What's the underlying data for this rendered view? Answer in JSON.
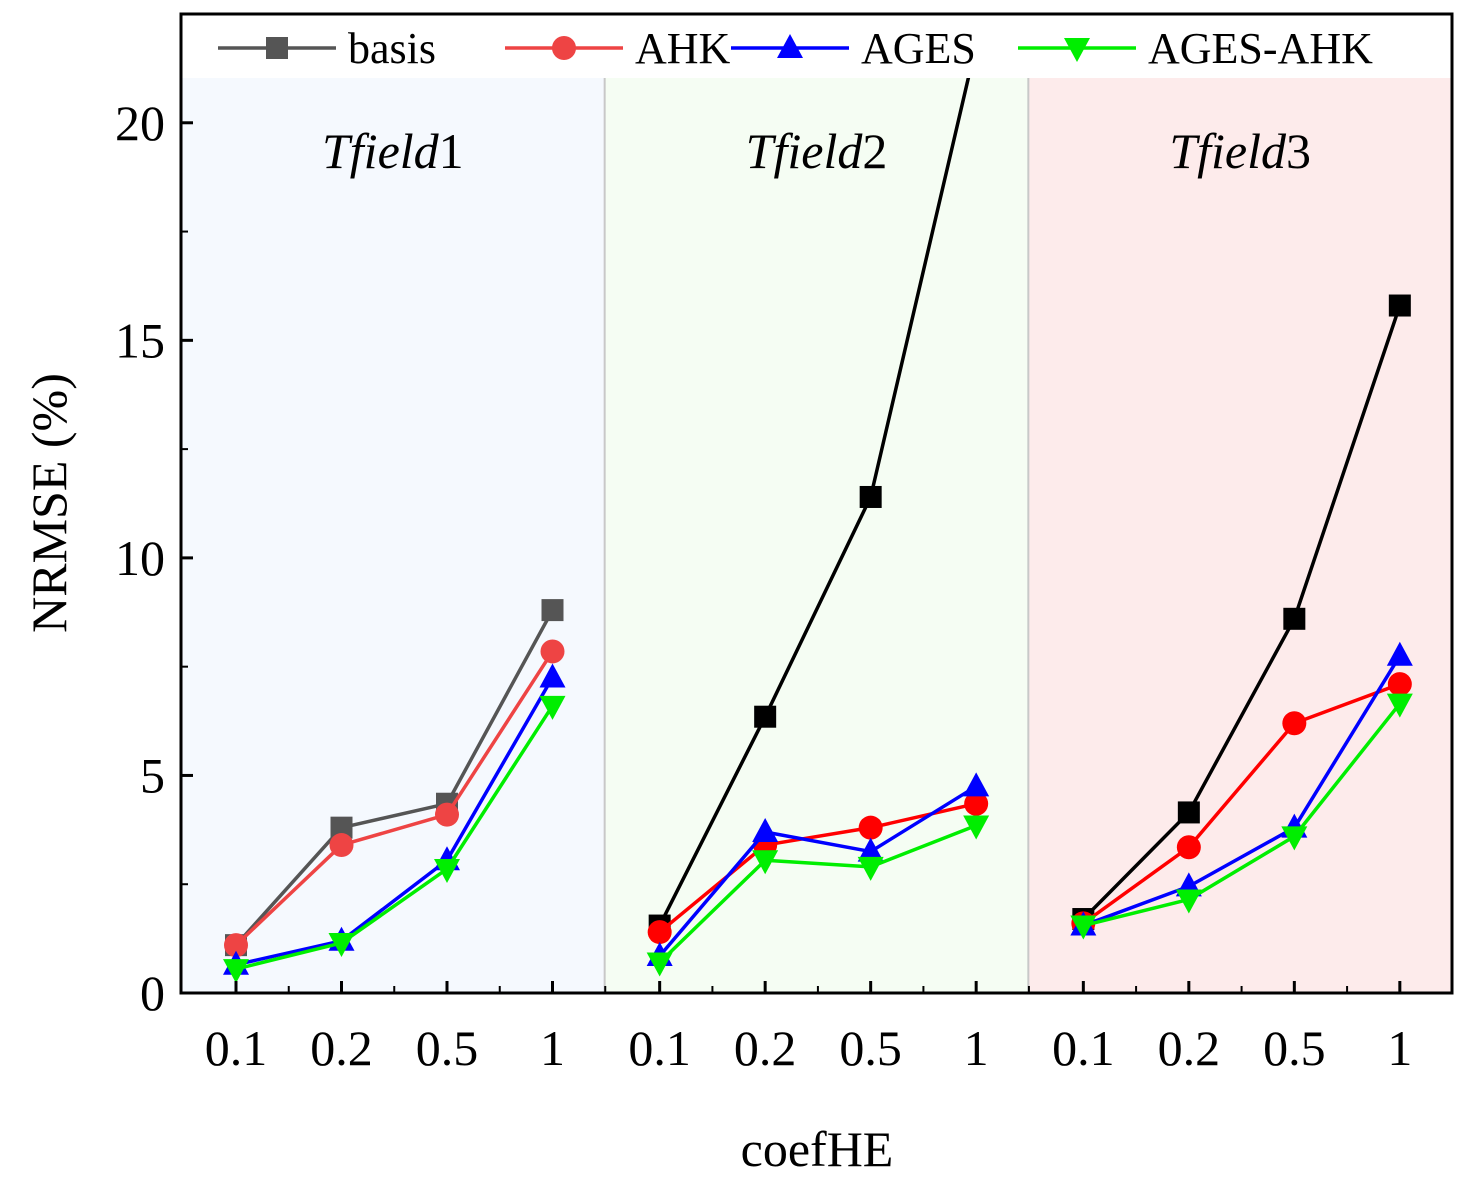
{
  "chart_data": {
    "type": "line",
    "ylabel": "NRMSE (%)",
    "xlabel": "coefHE",
    "ylim": [
      0,
      22.5
    ],
    "yticks": [
      0,
      5,
      10,
      15,
      20
    ],
    "ytick_labels": [
      "0",
      "5",
      "10",
      "15",
      "20"
    ],
    "categories": [
      "0.1",
      "0.2",
      "0.5",
      "1"
    ],
    "legend": [
      {
        "name": "basis",
        "marker": "square"
      },
      {
        "name": "AHK",
        "marker": "circle"
      },
      {
        "name": "AGES",
        "marker": "triangle-up"
      },
      {
        "name": "AGES-AHK",
        "marker": "triangle-down"
      }
    ],
    "panels": [
      {
        "title_italic": "Tfield",
        "title_number": "1",
        "background": "#f5f9fe",
        "series": [
          {
            "name": "basis",
            "color": "#555555",
            "marker": "square",
            "values": [
              1.1,
              3.8,
              4.35,
              8.8
            ]
          },
          {
            "name": "AHK",
            "color": "#ee4444",
            "marker": "circle",
            "values": [
              1.1,
              3.4,
              4.1,
              7.85
            ]
          },
          {
            "name": "AGES",
            "color": "#0000ff",
            "marker": "triangle-up",
            "values": [
              0.65,
              1.2,
              3.05,
              7.25
            ]
          },
          {
            "name": "AGES-AHK",
            "color": "#00ee00",
            "marker": "triangle-down",
            "values": [
              0.55,
              1.15,
              2.85,
              6.6
            ]
          }
        ]
      },
      {
        "title_italic": "Tfield",
        "title_number": "2",
        "background": "#f5fdf3",
        "series": [
          {
            "name": "basis",
            "color": "#000000",
            "marker": "square",
            "values": [
              1.55,
              6.35,
              11.4,
              21.8
            ]
          },
          {
            "name": "AHK",
            "color": "#ff0000",
            "marker": "circle",
            "values": [
              1.4,
              3.4,
              3.8,
              4.35
            ]
          },
          {
            "name": "AGES",
            "color": "#0000ff",
            "marker": "triangle-up",
            "values": [
              0.85,
              3.7,
              3.25,
              4.75
            ]
          },
          {
            "name": "AGES-AHK",
            "color": "#00ee00",
            "marker": "triangle-down",
            "values": [
              0.7,
              3.05,
              2.9,
              3.85
            ]
          }
        ]
      },
      {
        "title_italic": "Tfield",
        "title_number": "3",
        "background": "#fdebeb",
        "series": [
          {
            "name": "basis",
            "color": "#000000",
            "marker": "square",
            "values": [
              1.7,
              4.15,
              8.6,
              15.8
            ]
          },
          {
            "name": "AHK",
            "color": "#ff0000",
            "marker": "circle",
            "values": [
              1.6,
              3.35,
              6.2,
              7.1
            ]
          },
          {
            "name": "AGES",
            "color": "#0000ff",
            "marker": "triangle-up",
            "values": [
              1.55,
              2.45,
              3.8,
              7.75
            ]
          },
          {
            "name": "AGES-AHK",
            "color": "#00ee00",
            "marker": "triangle-down",
            "values": [
              1.55,
              2.15,
              3.6,
              6.65
            ]
          }
        ]
      }
    ],
    "legend_colors": [
      "#555555",
      "#ee4444",
      "#0000ff",
      "#00ee00"
    ]
  }
}
